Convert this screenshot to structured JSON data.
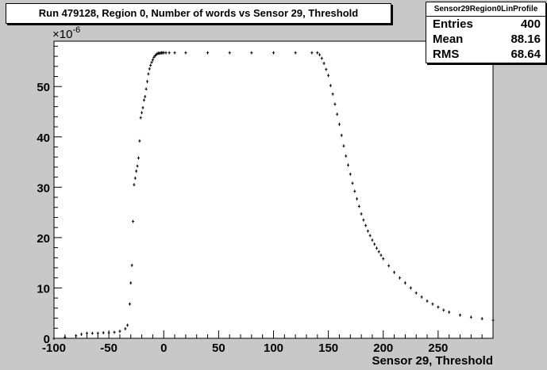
{
  "chart_data": {
    "type": "scatter",
    "title": "Run 479128, Region 0, Number of words vs Sensor 29, Threshold",
    "xlabel": "Sensor 29, Threshold",
    "ylabel": "",
    "y_exponent_label": "×10",
    "y_exponent_power": "-6",
    "xlim": [
      -100,
      300
    ],
    "ylim": [
      0,
      59
    ],
    "xticks": [
      -100,
      -50,
      0,
      50,
      100,
      150,
      200,
      250
    ],
    "yticks": [
      0,
      10,
      20,
      30,
      40,
      50
    ],
    "grid": false,
    "legend": "none",
    "marker_color": "#000000",
    "stats": {
      "name": "Sensor29Region0LinProfile",
      "rows": [
        {
          "label": "Entries",
          "value": "400"
        },
        {
          "label": "Mean",
          "value": "88.16"
        },
        {
          "label": "RMS",
          "value": "68.64"
        }
      ]
    },
    "series": [
      {
        "x": [
          -100,
          -90,
          -80,
          -75,
          -70,
          -65,
          -60,
          -55,
          -50,
          -45,
          -40,
          -35,
          -33,
          -31,
          -30,
          -29,
          -28,
          -27,
          -26,
          -25,
          -24,
          -23,
          -22,
          -21,
          -20,
          -19,
          -18,
          -17,
          -16,
          -15,
          -14,
          -13,
          -12,
          -11,
          -10,
          -9,
          -8,
          -7,
          -6,
          -5,
          -4,
          -3,
          -2,
          -1,
          0,
          2,
          5,
          10,
          20,
          40,
          60,
          80,
          100,
          120,
          135,
          140,
          142,
          144,
          146,
          148,
          150,
          152,
          154,
          156,
          158,
          160,
          162,
          164,
          166,
          168,
          170,
          172,
          174,
          176,
          178,
          180,
          182,
          184,
          186,
          188,
          190,
          192,
          194,
          196,
          198,
          200,
          205,
          210,
          215,
          220,
          225,
          230,
          235,
          240,
          245,
          250,
          255,
          260,
          270,
          280,
          290,
          300
        ],
        "y": [
          0,
          0.2,
          0.5,
          0.8,
          1.0,
          1.0,
          1.0,
          1.1,
          1.1,
          1.2,
          1.4,
          1.9,
          2.6,
          6.8,
          11.0,
          14.5,
          23.2,
          30.5,
          31.8,
          33.2,
          34.2,
          35.8,
          39.2,
          43.8,
          44.8,
          45.8,
          47.3,
          48.0,
          49.5,
          51.0,
          52.5,
          53.5,
          54.2,
          54.8,
          55.3,
          55.8,
          56.1,
          56.3,
          56.5,
          56.6,
          56.6,
          56.65,
          56.7,
          56.7,
          56.7,
          56.7,
          56.7,
          56.7,
          56.7,
          56.7,
          56.7,
          56.7,
          56.7,
          56.7,
          56.7,
          56.7,
          56.3,
          55.6,
          54.6,
          53.4,
          52.2,
          50.2,
          48.5,
          46.5,
          44.5,
          42.5,
          40.3,
          38.2,
          36.2,
          34.4,
          32.6,
          30.8,
          29.2,
          27.7,
          26.2,
          24.7,
          23.5,
          22.4,
          21.3,
          20.4,
          19.5,
          18.7,
          17.9,
          17.2,
          16.5,
          15.8,
          14.4,
          13.1,
          12.0,
          11.0,
          10.0,
          9.0,
          8.2,
          7.4,
          6.8,
          6.2,
          5.6,
          5.2,
          4.6,
          4.2,
          3.9,
          3.6
        ]
      }
    ]
  }
}
